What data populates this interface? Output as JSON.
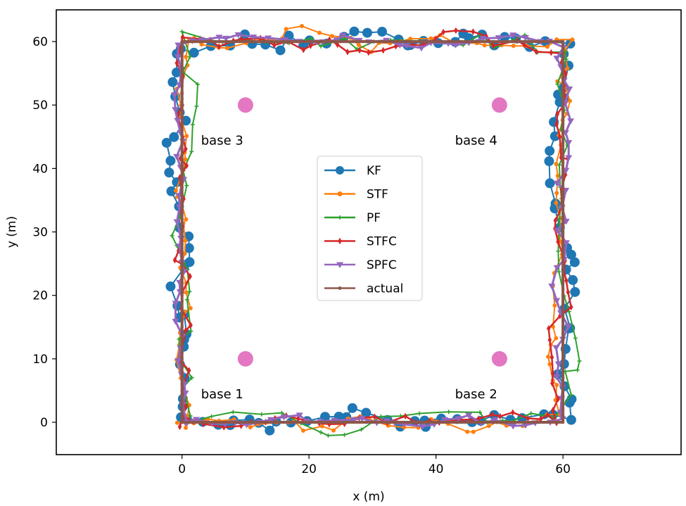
{
  "chart_data": {
    "type": "line",
    "title": "",
    "xlabel": "x (m)",
    "ylabel": "y (m)",
    "xlim": [
      -19.8,
      78.6
    ],
    "ylim": [
      -5.1,
      65.0
    ],
    "xticks": [
      0,
      20,
      40,
      60
    ],
    "yticks": [
      0,
      10,
      20,
      30,
      40,
      50,
      60
    ],
    "grid": false,
    "legend_position": "center",
    "legend": [
      "KF",
      "STF",
      "PF",
      "STFC",
      "SPFC",
      "actual"
    ],
    "colors": {
      "KF": "#1f77b4",
      "STF": "#ff7f0e",
      "PF": "#2ca02c",
      "STFC": "#d62728",
      "SPFC": "#9467bd",
      "actual": "#8c564b",
      "bases": "#e377c2"
    },
    "series": [
      {
        "name": "actual",
        "marker": "*",
        "path": [
          [
            0,
            0
          ],
          [
            60,
            0
          ],
          [
            60,
            60
          ],
          [
            0,
            60
          ],
          [
            0,
            0
          ]
        ]
      },
      {
        "name": "KF",
        "marker": "o",
        "description": "noisy estimate around square path, deviations up to ~4 m"
      },
      {
        "name": "STF",
        "marker": ".",
        "description": "estimate mostly overlapping others, visible near (0,0)-(0,7)"
      },
      {
        "name": "PF",
        "marker": "+",
        "description": "noisy estimate with largest deviations, up to ~5 m"
      },
      {
        "name": "STFC",
        "marker": "d",
        "description": "noisy estimate around square path"
      },
      {
        "name": "SPFC",
        "marker": "v",
        "description": "noisy estimate close to actual path"
      }
    ],
    "bases": [
      {
        "label": "base 1",
        "x": 10,
        "y": 10
      },
      {
        "label": "base 2",
        "x": 50,
        "y": 10
      },
      {
        "label": "base 3",
        "x": 10,
        "y": 50
      },
      {
        "label": "base 4",
        "x": 50,
        "y": 50
      }
    ],
    "annotations": [
      {
        "text": "base 1",
        "x": 3,
        "y": 4
      },
      {
        "text": "base 2",
        "x": 43,
        "y": 4
      },
      {
        "text": "base 3",
        "x": 3,
        "y": 44
      },
      {
        "text": "base 4",
        "x": 43,
        "y": 44
      }
    ]
  }
}
